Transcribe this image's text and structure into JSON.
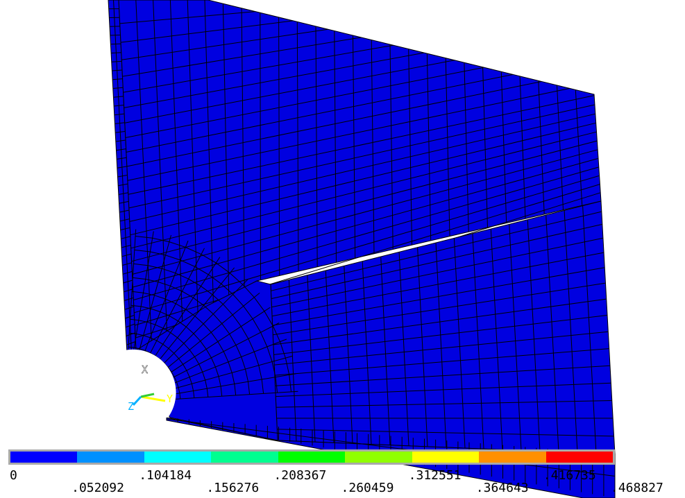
{
  "triad": {
    "x_label": "X",
    "y_label": "Y",
    "z_label": "Z",
    "x_color": "#ffffff",
    "y_color": "#ffff00",
    "z_color": "#00b0ff"
  },
  "model": {
    "fill_color": "#0000e0",
    "mesh_line_color": "#000000"
  },
  "legend": {
    "colors": [
      "#0000ff",
      "#0090ff",
      "#00ffff",
      "#00ff90",
      "#00ff00",
      "#90ff00",
      "#ffff00",
      "#ff9000",
      "#ff0000"
    ],
    "border_color": "#a9a9a9",
    "top_ticks": [
      "0",
      ".104184",
      ".208367",
      ".312551",
      ".416735"
    ],
    "bottom_ticks": [
      ".052092",
      ".156276",
      ".260459",
      ".364643",
      ".468827"
    ]
  }
}
